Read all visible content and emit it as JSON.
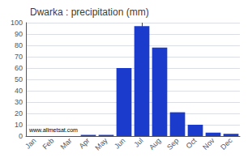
{
  "chart_data": {
    "type": "bar",
    "title": "Dwarka : precipitation (mm)",
    "categories": [
      "Jan",
      "Feb",
      "Mar",
      "Apr",
      "May",
      "Jun",
      "Jul",
      "Aug",
      "Sep",
      "Oct",
      "Nov",
      "Dec"
    ],
    "values": [
      0,
      0,
      0,
      1,
      1,
      60,
      97,
      78,
      21,
      10,
      3,
      2
    ],
    "color": "#1a3bcc",
    "ylim": [
      0,
      100
    ],
    "yticks": [
      0,
      10,
      20,
      30,
      40,
      50,
      60,
      70,
      80,
      90,
      100
    ],
    "grid": true,
    "annotations": [
      "www.allmetsat.com"
    ],
    "vline": "Jul"
  }
}
